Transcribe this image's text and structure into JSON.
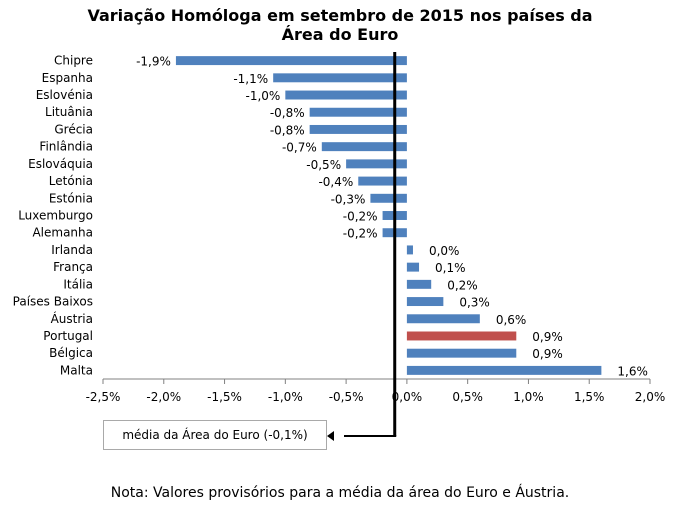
{
  "chart_data": {
    "type": "bar",
    "orientation": "horizontal",
    "title_line1": "Variação Homóloga em setembro de 2015 nos países da",
    "title_line2": "Área do Euro",
    "categories": [
      "Chipre",
      "Espanha",
      "Eslovénia",
      "Lituânia",
      "Grécia",
      "Finlândia",
      "Eslováquia",
      "Letónia",
      "Estónia",
      "Luxemburgo",
      "Alemanha",
      "Irlanda",
      "França",
      "Itália",
      "Países Baixos",
      "Áustria",
      "Portugal",
      "Bélgica",
      "Malta"
    ],
    "values": [
      -1.9,
      -1.1,
      -1.0,
      -0.8,
      -0.8,
      -0.7,
      -0.5,
      -0.4,
      -0.3,
      -0.2,
      -0.2,
      0.05,
      0.1,
      0.2,
      0.3,
      0.6,
      0.9,
      0.9,
      1.6
    ],
    "data_labels": [
      "-1,9%",
      "-1,1%",
      "-1,0%",
      "-0,8%",
      "-0,8%",
      "-0,7%",
      "-0,5%",
      "-0,4%",
      "-0,3%",
      "-0,2%",
      "-0,2%",
      "0,0%",
      "0,1%",
      "0,2%",
      "0,3%",
      "0,6%",
      "0,9%",
      "0,9%",
      "1,6%"
    ],
    "xlim": [
      -2.5,
      2.0
    ],
    "x_ticks": [
      -2.5,
      -2.0,
      -1.5,
      -1.0,
      -0.5,
      0.0,
      0.5,
      1.0,
      1.5,
      2.0
    ],
    "x_tick_labels": [
      "-2,5%",
      "-2,0%",
      "-1,5%",
      "-1,0%",
      "-0,5%",
      "0,0%",
      "0,5%",
      "1,0%",
      "1,5%",
      "2,0%"
    ],
    "reference_line": -0.1,
    "reference_label": "média da Área do Euro (-0,1%)",
    "highlight_category": "Portugal",
    "colors": {
      "bar": "#4f81bd",
      "highlight": "#c0504d",
      "reference_line": "#000000",
      "axis": "#808080"
    },
    "grid": false,
    "legend": "none"
  },
  "note": "Nota: Valores provisórios para a média da área do Euro e Áustria."
}
